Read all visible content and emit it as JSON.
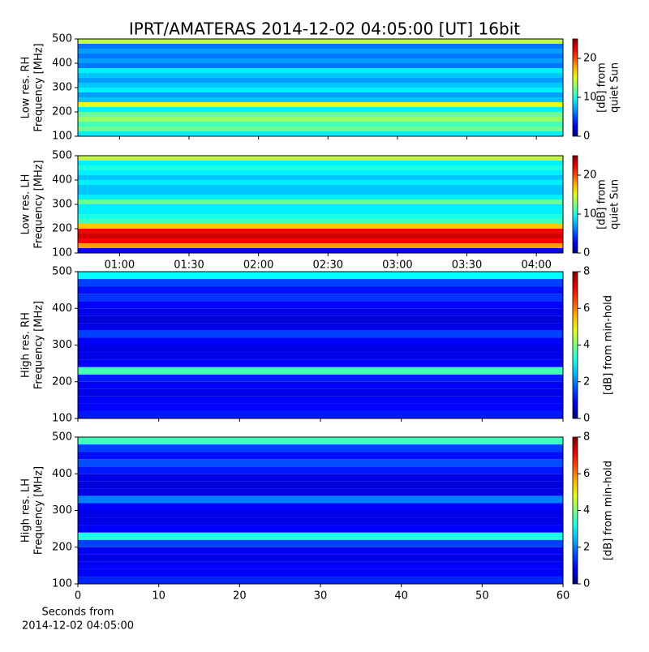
{
  "chart_data": [
    {
      "type": "heatmap",
      "title": "IPRT/AMATERAS 2014-12-02 04:05:00 [UT]   16bit",
      "ylabel": [
        "Low res. RH",
        "Frequency [MHz]"
      ],
      "colorbar_label": [
        "[dB] from",
        "quiet Sun"
      ],
      "ylim": [
        100,
        500
      ],
      "yticks": [
        100,
        200,
        300,
        400,
        500
      ],
      "clim": [
        0,
        25
      ],
      "cticks": [
        0,
        10,
        20
      ],
      "colormap": "jet",
      "ybins": [
        100,
        120,
        140,
        160,
        180,
        200,
        220,
        240,
        260,
        280,
        300,
        320,
        340,
        360,
        380,
        400,
        420,
        440,
        460,
        480,
        500
      ],
      "values": [
        9,
        12,
        11,
        13,
        12,
        9,
        15,
        8,
        7,
        9,
        8,
        7,
        8,
        9,
        6,
        7,
        6,
        7,
        6,
        14
      ]
    },
    {
      "type": "heatmap",
      "ylabel": [
        "Low res. LH",
        "Frequency [MHz]"
      ],
      "colorbar_label": [
        "[dB] from",
        "quiet Sun"
      ],
      "ylim": [
        100,
        500
      ],
      "yticks": [
        100,
        200,
        300,
        400,
        500
      ],
      "clim": [
        0,
        25
      ],
      "cticks": [
        0,
        10,
        20
      ],
      "colormap": "jet",
      "xlim": [
        42,
        251.5
      ],
      "xticks": [
        {
          "value": 60,
          "label": "01:00"
        },
        {
          "value": 90,
          "label": "01:30"
        },
        {
          "value": 120,
          "label": "02:00"
        },
        {
          "value": 150,
          "label": "02:30"
        },
        {
          "value": 180,
          "label": "03:00"
        },
        {
          "value": 210,
          "label": "03:30"
        },
        {
          "value": 240,
          "label": "04:00"
        }
      ],
      "ybins": [
        100,
        120,
        140,
        160,
        180,
        200,
        220,
        240,
        260,
        280,
        300,
        320,
        340,
        360,
        380,
        400,
        420,
        440,
        460,
        480,
        500
      ],
      "values": [
        3,
        18,
        22,
        23,
        22,
        17,
        11,
        10,
        9,
        9,
        12,
        9,
        8,
        8,
        9,
        8,
        9,
        10,
        9,
        14
      ]
    },
    {
      "type": "heatmap",
      "ylabel": [
        "High res. RH",
        "Frequency [MHz]"
      ],
      "colorbar_label": [
        "[dB] from min-hold"
      ],
      "ylim": [
        100,
        500
      ],
      "yticks": [
        100,
        200,
        300,
        400,
        500
      ],
      "clim": [
        0,
        8
      ],
      "cticks": [
        0,
        2,
        4,
        6,
        8
      ],
      "colormap": "jet",
      "xlim": [
        0,
        60
      ],
      "xticks": [
        0,
        10,
        20,
        30,
        40,
        50,
        60
      ],
      "ybins": [
        100,
        120,
        140,
        160,
        180,
        200,
        220,
        240,
        260,
        280,
        300,
        320,
        340,
        360,
        380,
        400,
        420,
        440,
        460,
        480,
        500
      ],
      "values": [
        1.2,
        1,
        1,
        0.8,
        0.9,
        1.2,
        3.5,
        1,
        0.8,
        0.8,
        1,
        1.5,
        0.8,
        0.7,
        0.8,
        1,
        1.4,
        1.1,
        1.5,
        3
      ]
    },
    {
      "type": "heatmap",
      "ylabel": [
        "High res. LH",
        "Frequency [MHz]"
      ],
      "colorbar_label": [
        "[dB] from min-hold"
      ],
      "ylim": [
        100,
        500
      ],
      "yticks": [
        100,
        200,
        300,
        400,
        500
      ],
      "clim": [
        0,
        8
      ],
      "cticks": [
        0,
        2,
        4,
        6,
        8
      ],
      "colormap": "jet",
      "xlim": [
        0,
        60
      ],
      "xticks": [
        0,
        10,
        20,
        30,
        40,
        50,
        60
      ],
      "xlabel": [
        "Seconds from",
        "2014-12-02 04:05:00"
      ],
      "ybins": [
        100,
        120,
        140,
        160,
        180,
        200,
        220,
        240,
        260,
        280,
        300,
        320,
        340,
        360,
        380,
        400,
        420,
        440,
        460,
        480,
        500
      ],
      "values": [
        1.3,
        1,
        1,
        0.8,
        0.9,
        1.5,
        3.2,
        1,
        0.8,
        0.8,
        1,
        2,
        0.8,
        0.7,
        0.8,
        1.2,
        1.6,
        1.1,
        1.5,
        3.5
      ]
    }
  ]
}
